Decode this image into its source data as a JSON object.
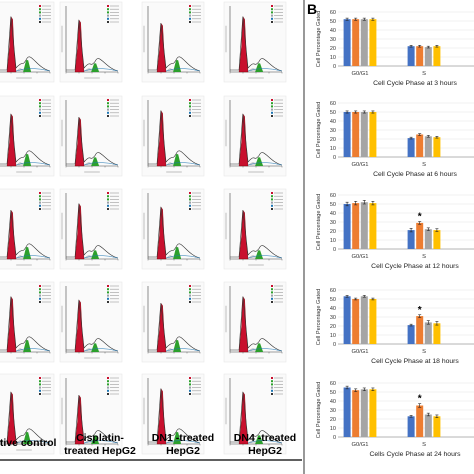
{
  "panel_label": "B",
  "left_panel": {
    "column_labels": [
      {
        "lines": [
          "gative control"
        ]
      },
      {
        "lines": [
          "Cisplatin-",
          "treated HepG2"
        ]
      },
      {
        "lines": [
          "DN1 -treated",
          "HepG2"
        ]
      },
      {
        "lines": [
          "DN4 -treated",
          "HepG2"
        ]
      }
    ]
  },
  "colors": {
    "g0g1_fill": "#c8102e",
    "s_fill": "#2ca02c",
    "g2m_fill": "#9aa0a6",
    "fit_line": "#333333",
    "bar_blue": "#4472c4",
    "bar_orange": "#ed7d31",
    "bar_gray": "#a5a5a5",
    "bar_yellow": "#ffc000"
  },
  "chart_data": [
    {
      "type": "bar",
      "title": "Cell Cycle Phase at 3 hours",
      "ylabel": "Cell Percentage Gated",
      "categories": [
        "G0/G1",
        "S"
      ],
      "ylim": [
        0,
        60
      ],
      "yticks": [
        0,
        10,
        20,
        30,
        40,
        50,
        60
      ],
      "series": [
        {
          "values": [
            52,
            22
          ],
          "errors": [
            1.2,
            1.0
          ]
        },
        {
          "values": [
            52,
            22
          ],
          "errors": [
            1.2,
            1.0
          ]
        },
        {
          "values": [
            52,
            21
          ],
          "errors": [
            1.2,
            1.0
          ]
        },
        {
          "values": [
            52,
            22
          ],
          "errors": [
            1.2,
            1.0
          ]
        }
      ],
      "star_index": null
    },
    {
      "type": "bar",
      "title": "Cell Cycle Phase at 6 hours",
      "ylabel": "Cell Percentage Gated",
      "categories": [
        "G0/G1",
        "S"
      ],
      "ylim": [
        0,
        60
      ],
      "yticks": [
        0,
        10,
        20,
        30,
        40,
        50,
        60
      ],
      "series": [
        {
          "values": [
            50,
            21
          ],
          "errors": [
            1.2,
            1.0
          ]
        },
        {
          "values": [
            50,
            25
          ],
          "errors": [
            1.2,
            1.0
          ]
        },
        {
          "values": [
            50,
            23
          ],
          "errors": [
            1.2,
            1.0
          ]
        },
        {
          "values": [
            50,
            22
          ],
          "errors": [
            1.2,
            1.0
          ]
        }
      ],
      "star_index": null
    },
    {
      "type": "bar",
      "title": "Cell Cycle Phase at 12 hours",
      "ylabel": "Cell Percentage Gated",
      "categories": [
        "G0/G1",
        "S"
      ],
      "ylim": [
        0,
        60
      ],
      "yticks": [
        0,
        10,
        20,
        30,
        40,
        50,
        60
      ],
      "series": [
        {
          "values": [
            50,
            21
          ],
          "errors": [
            2,
            2
          ]
        },
        {
          "values": [
            51,
            29
          ],
          "errors": [
            2,
            1.5
          ]
        },
        {
          "values": [
            52,
            22
          ],
          "errors": [
            2,
            1.5
          ]
        },
        {
          "values": [
            51,
            21
          ],
          "errors": [
            2,
            1.5
          ]
        }
      ],
      "star_index": 1
    },
    {
      "type": "bar",
      "title": "Cell Cycle Phase at 18 hours",
      "ylabel": "Cell Percentage Gated",
      "categories": [
        "G0/G1",
        "S"
      ],
      "ylim": [
        0,
        60
      ],
      "yticks": [
        0,
        10,
        20,
        30,
        40,
        50,
        60
      ],
      "series": [
        {
          "values": [
            53,
            21
          ],
          "errors": [
            1,
            1
          ]
        },
        {
          "values": [
            50,
            31
          ],
          "errors": [
            1,
            1.5
          ]
        },
        {
          "values": [
            53,
            24
          ],
          "errors": [
            1,
            2
          ]
        },
        {
          "values": [
            50,
            23
          ],
          "errors": [
            1,
            2
          ]
        }
      ],
      "star_index": 1
    },
    {
      "type": "bar",
      "title": "Cells Cycle Phase at 24 hours",
      "ylabel": "Cell Percentage Gated",
      "categories": [
        "G0/G1",
        "S"
      ],
      "ylim": [
        0,
        60
      ],
      "yticks": [
        0,
        10,
        20,
        30,
        40,
        50,
        60
      ],
      "series": [
        {
          "values": [
            55,
            23
          ],
          "errors": [
            1.5,
            1
          ]
        },
        {
          "values": [
            52,
            35
          ],
          "errors": [
            1.5,
            2
          ]
        },
        {
          "values": [
            53,
            25
          ],
          "errors": [
            1.5,
            1.5
          ]
        },
        {
          "values": [
            53,
            23
          ],
          "errors": [
            1.5,
            1.5
          ]
        }
      ],
      "star_index": 1
    }
  ]
}
